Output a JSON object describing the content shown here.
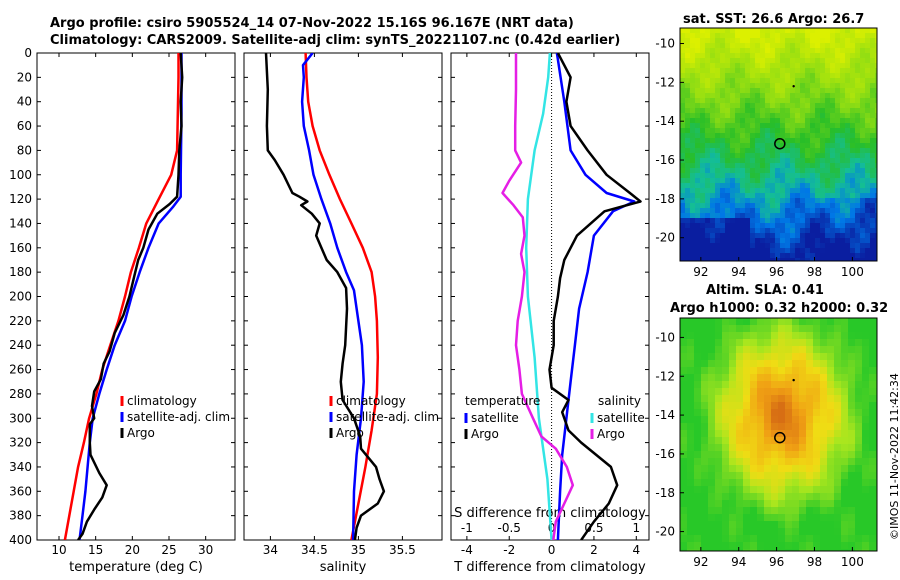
{
  "header": {
    "line1": "Argo profile: csiro 5905524_14 07-Nov-2022 15.16S 96.167E (NRT data)",
    "line2": "Climatology: CARS2009. Satellite-adj clim: synTS_20221107.nc (0.42d earlier)"
  },
  "stamp": "©IMOS 11-Nov-2022 11:42:34",
  "colors": {
    "climatology": "#ff0000",
    "satellite": "#0000ff",
    "argo": "#000000",
    "cyan": "#33e5e5",
    "magenta": "#e51ee5"
  },
  "chart_data": [
    {
      "type": "line",
      "id": "temperature",
      "xlabel": "temperature (deg C)",
      "ylim": [
        0,
        400
      ],
      "xlim": [
        7,
        34
      ],
      "xticks": [
        10,
        15,
        20,
        25,
        30
      ],
      "yticks": [
        0,
        20,
        40,
        60,
        80,
        100,
        120,
        140,
        160,
        180,
        200,
        220,
        240,
        260,
        280,
        300,
        320,
        340,
        360,
        380,
        400
      ],
      "legend": [
        "climatology",
        "satellite-adj. clim",
        "Argo"
      ],
      "series": [
        {
          "name": "climatology",
          "color": "#ff0000",
          "points": [
            [
              26.3,
              0
            ],
            [
              26.3,
              20
            ],
            [
              26.2,
              50
            ],
            [
              26.1,
              80
            ],
            [
              25.3,
              100
            ],
            [
              23.6,
              120
            ],
            [
              21.9,
              140
            ],
            [
              20.9,
              160
            ],
            [
              19.8,
              180
            ],
            [
              19.0,
              200
            ],
            [
              18.1,
              220
            ],
            [
              17.0,
              240
            ],
            [
              15.9,
              260
            ],
            [
              15.1,
              280
            ],
            [
              14.1,
              300
            ],
            [
              13.4,
              320
            ],
            [
              12.6,
              340
            ],
            [
              12.0,
              360
            ],
            [
              11.4,
              380
            ],
            [
              10.8,
              400
            ]
          ]
        },
        {
          "name": "satellite-adj. clim",
          "color": "#0000ff",
          "points": [
            [
              26.7,
              0
            ],
            [
              26.7,
              50
            ],
            [
              26.6,
              100
            ],
            [
              26.6,
              118
            ],
            [
              25.6,
              126
            ],
            [
              23.6,
              140
            ],
            [
              22.2,
              160
            ],
            [
              21.0,
              180
            ],
            [
              19.9,
              200
            ],
            [
              19.0,
              220
            ],
            [
              17.6,
              240
            ],
            [
              16.5,
              260
            ],
            [
              15.5,
              280
            ],
            [
              14.6,
              300
            ],
            [
              14.2,
              320
            ],
            [
              13.9,
              340
            ],
            [
              13.6,
              360
            ],
            [
              13.2,
              380
            ],
            [
              12.8,
              400
            ]
          ]
        },
        {
          "name": "Argo",
          "color": "#000000",
          "points": [
            [
              26.6,
              0
            ],
            [
              26.8,
              20
            ],
            [
              26.6,
              40
            ],
            [
              26.7,
              60
            ],
            [
              26.4,
              80
            ],
            [
              26.3,
              100
            ],
            [
              26.1,
              118
            ],
            [
              25.1,
              124
            ],
            [
              23.4,
              132
            ],
            [
              22.2,
              145
            ],
            [
              21.5,
              160
            ],
            [
              20.8,
              170
            ],
            [
              20.2,
              185
            ],
            [
              19.6,
              200
            ],
            [
              18.8,
              215
            ],
            [
              17.6,
              230
            ],
            [
              16.9,
              245
            ],
            [
              16.1,
              255
            ],
            [
              15.7,
              268
            ],
            [
              14.8,
              278
            ],
            [
              14.5,
              290
            ],
            [
              14.8,
              300
            ],
            [
              14.2,
              305
            ],
            [
              14.2,
              320
            ],
            [
              14.3,
              330
            ],
            [
              15.5,
              345
            ],
            [
              16.5,
              355
            ],
            [
              15.9,
              365
            ],
            [
              14.8,
              375
            ],
            [
              13.8,
              385
            ],
            [
              13.2,
              395
            ],
            [
              12.6,
              400
            ]
          ]
        }
      ]
    },
    {
      "type": "line",
      "id": "salinity",
      "xlabel": "salinity",
      "ylim": [
        0,
        400
      ],
      "xlim": [
        33.7,
        35.95
      ],
      "xticks": [
        34,
        34.5,
        35,
        35.5
      ],
      "legend": [
        "climatology",
        "satellite-adj. clim",
        "Argo"
      ],
      "series": [
        {
          "name": "climatology",
          "color": "#ff0000",
          "points": [
            [
              34.4,
              0
            ],
            [
              34.41,
              20
            ],
            [
              34.43,
              40
            ],
            [
              34.48,
              60
            ],
            [
              34.56,
              80
            ],
            [
              34.67,
              100
            ],
            [
              34.79,
              120
            ],
            [
              34.92,
              140
            ],
            [
              35.05,
              160
            ],
            [
              35.15,
              180
            ],
            [
              35.19,
              200
            ],
            [
              35.21,
              220
            ],
            [
              35.22,
              250
            ],
            [
              35.21,
              280
            ],
            [
              35.15,
              310
            ],
            [
              35.08,
              340
            ],
            [
              35.0,
              370
            ],
            [
              34.92,
              400
            ]
          ]
        },
        {
          "name": "satellite-adj. clim",
          "color": "#0000ff",
          "points": [
            [
              34.48,
              0
            ],
            [
              34.37,
              10
            ],
            [
              34.38,
              20
            ],
            [
              34.36,
              40
            ],
            [
              34.38,
              60
            ],
            [
              34.44,
              80
            ],
            [
              34.49,
              100
            ],
            [
              34.58,
              120
            ],
            [
              34.68,
              140
            ],
            [
              34.76,
              160
            ],
            [
              34.86,
              180
            ],
            [
              34.95,
              195
            ],
            [
              34.99,
              215
            ],
            [
              35.04,
              240
            ],
            [
              35.06,
              270
            ],
            [
              35.03,
              300
            ],
            [
              34.98,
              330
            ],
            [
              34.95,
              360
            ],
            [
              34.94,
              400
            ]
          ]
        },
        {
          "name": "Argo",
          "color": "#000000",
          "points": [
            [
              33.95,
              0
            ],
            [
              33.97,
              30
            ],
            [
              33.96,
              60
            ],
            [
              33.97,
              80
            ],
            [
              34.05,
              88
            ],
            [
              34.15,
              100
            ],
            [
              34.25,
              115
            ],
            [
              34.33,
              118
            ],
            [
              34.42,
              122
            ],
            [
              34.35,
              125
            ],
            [
              34.47,
              132
            ],
            [
              34.56,
              140
            ],
            [
              34.52,
              150
            ],
            [
              34.58,
              160
            ],
            [
              34.64,
              170
            ],
            [
              34.76,
              180
            ],
            [
              34.86,
              193
            ],
            [
              34.87,
              210
            ],
            [
              34.86,
              225
            ],
            [
              34.85,
              240
            ],
            [
              34.82,
              255
            ],
            [
              34.8,
              270
            ],
            [
              34.82,
              285
            ],
            [
              34.95,
              300
            ],
            [
              35.02,
              315
            ],
            [
              35.03,
              325
            ],
            [
              35.2,
              340
            ],
            [
              35.24,
              350
            ],
            [
              35.29,
              360
            ],
            [
              35.22,
              370
            ],
            [
              35.03,
              380
            ],
            [
              34.98,
              390
            ],
            [
              34.96,
              400
            ]
          ]
        }
      ]
    },
    {
      "type": "line",
      "id": "difference",
      "xlabel": "T difference from climatology",
      "top_xlabel": "S difference from climatology",
      "ylim": [
        0,
        400
      ],
      "xlim": [
        -4.75,
        4.6
      ],
      "xticks": [
        -4,
        -2,
        0,
        2,
        4
      ],
      "top_xticks": [
        -1,
        -0.5,
        0,
        0.5,
        1
      ],
      "legend_left_title": "temperature",
      "legend_right_title": "salinity",
      "legend_left": [
        "satellite",
        "Argo"
      ],
      "legend_right": [
        "satellite",
        "Argo"
      ],
      "series": [
        {
          "name": "T satellite",
          "color": "#0000ff",
          "points": [
            [
              0.25,
              0
            ],
            [
              0.6,
              40
            ],
            [
              0.9,
              80
            ],
            [
              1.6,
              100
            ],
            [
              2.6,
              115
            ],
            [
              3.9,
              122
            ],
            [
              2.9,
              130
            ],
            [
              2.0,
              150
            ],
            [
              1.7,
              180
            ],
            [
              1.3,
              210
            ],
            [
              1.1,
              240
            ],
            [
              0.9,
              270
            ],
            [
              0.7,
              300
            ],
            [
              0.5,
              330
            ],
            [
              0.4,
              360
            ],
            [
              0.3,
              400
            ]
          ]
        },
        {
          "name": "T Argo",
          "color": "#000000",
          "points": [
            [
              0.3,
              0
            ],
            [
              0.9,
              20
            ],
            [
              0.7,
              40
            ],
            [
              0.9,
              60
            ],
            [
              1.7,
              80
            ],
            [
              2.6,
              100
            ],
            [
              3.7,
              115
            ],
            [
              4.2,
              122
            ],
            [
              2.5,
              130
            ],
            [
              1.2,
              150
            ],
            [
              0.6,
              170
            ],
            [
              0.4,
              185
            ],
            [
              0.3,
              200
            ],
            [
              0.1,
              220
            ],
            [
              0.1,
              240
            ],
            [
              -0.1,
              260
            ],
            [
              0.0,
              275
            ],
            [
              0.8,
              285
            ],
            [
              0.5,
              295
            ],
            [
              0.8,
              310
            ],
            [
              1.4,
              320
            ],
            [
              2.8,
              340
            ],
            [
              3.1,
              355
            ],
            [
              2.7,
              370
            ],
            [
              2.0,
              385
            ],
            [
              1.4,
              400
            ]
          ]
        },
        {
          "name": "S satellite",
          "color": "#33e5e5",
          "points": [
            [
              -0.02,
              0
            ],
            [
              -0.04,
              20
            ],
            [
              -0.1,
              50
            ],
            [
              -0.2,
              80
            ],
            [
              -0.28,
              120
            ],
            [
              -0.3,
              160
            ],
            [
              -0.28,
              200
            ],
            [
              -0.2,
              250
            ],
            [
              -0.15,
              300
            ],
            [
              -0.05,
              350
            ],
            [
              0.0,
              400
            ]
          ]
        },
        {
          "name": "S Argo",
          "color": "#e51ee5",
          "points": [
            [
              -0.42,
              0
            ],
            [
              -0.42,
              30
            ],
            [
              -0.43,
              60
            ],
            [
              -0.43,
              80
            ],
            [
              -0.36,
              90
            ],
            [
              -0.5,
              105
            ],
            [
              -0.58,
              115
            ],
            [
              -0.45,
              125
            ],
            [
              -0.34,
              135
            ],
            [
              -0.32,
              150
            ],
            [
              -0.36,
              165
            ],
            [
              -0.32,
              180
            ],
            [
              -0.35,
              200
            ],
            [
              -0.4,
              220
            ],
            [
              -0.42,
              240
            ],
            [
              -0.38,
              260
            ],
            [
              -0.35,
              280
            ],
            [
              -0.22,
              300
            ],
            [
              -0.12,
              315
            ],
            [
              0.05,
              325
            ],
            [
              0.18,
              340
            ],
            [
              0.25,
              355
            ],
            [
              0.15,
              370
            ],
            [
              0.05,
              385
            ],
            [
              0.02,
              400
            ]
          ]
        }
      ]
    },
    {
      "type": "heatmap",
      "id": "sst-map",
      "title": "sat. SST: 26.6 Argo: 26.7",
      "xlim": [
        90.9,
        101.3
      ],
      "ylim": [
        -21.2,
        -9.2
      ],
      "xticks": [
        92,
        94,
        96,
        98,
        100
      ],
      "yticks": [
        -10,
        -12,
        -14,
        -16,
        -18,
        -20
      ],
      "argo_position": [
        96.17,
        -15.16
      ],
      "small_marker": [
        96.9,
        -12.2
      ]
    },
    {
      "type": "heatmap",
      "id": "sla-map",
      "title_line1": "Altim. SLA: 0.41",
      "title_line2": "Argo h1000: 0.32 h2000: 0.32",
      "xlim": [
        90.9,
        101.3
      ],
      "ylim": [
        -21.0,
        -9.0
      ],
      "xticks": [
        92,
        94,
        96,
        98,
        100
      ],
      "yticks": [
        -10,
        -12,
        -14,
        -16,
        -18,
        -20
      ],
      "argo_position": [
        96.17,
        -15.16
      ],
      "small_marker": [
        96.9,
        -12.2
      ]
    }
  ]
}
